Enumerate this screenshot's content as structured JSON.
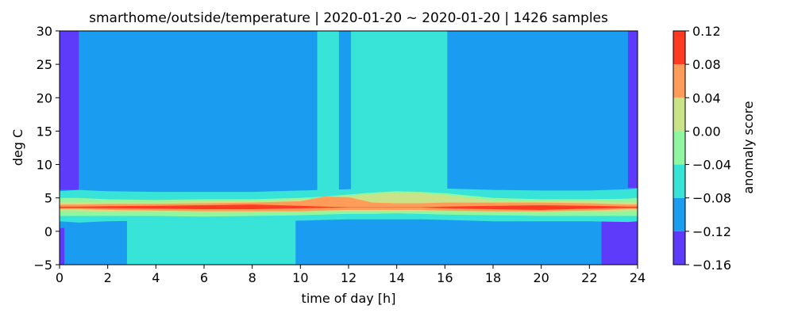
{
  "chart_data": {
    "type": "heatmap",
    "title": "smarthome/outside/temperature | 2020-01-20 ~ 2020-01-20 | 1426 samples",
    "xlabel": "time of day [h]",
    "ylabel": "deg C",
    "xlim": [
      0,
      24
    ],
    "ylim": [
      -5,
      30
    ],
    "xticks": [
      "0",
      "2",
      "4",
      "6",
      "8",
      "10",
      "12",
      "14",
      "16",
      "18",
      "20",
      "22",
      "24"
    ],
    "yticks": [
      "−5",
      "0",
      "5",
      "10",
      "15",
      "20",
      "25",
      "30"
    ],
    "colorbar": {
      "label": "anomaly score",
      "ticks": [
        "−0.16",
        "−0.12",
        "−0.08",
        "−0.04",
        "0.00",
        "0.04",
        "0.08",
        "0.12"
      ],
      "levels": [
        -0.16,
        -0.12,
        -0.08,
        -0.04,
        0.0,
        0.04,
        0.08,
        0.12
      ],
      "colors": [
        "#5e3bfb",
        "#1a9cf0",
        "#38e3d8",
        "#8ff7a0",
        "#c9e388",
        "#ff9c5a",
        "#ff3a20"
      ]
    },
    "regions": [
      {
        "x0": 0,
        "x1": 24,
        "y0": -5,
        "y1": 30,
        "level": -0.12
      },
      {
        "x0": 0,
        "x1": 0.8,
        "y0": 6.2,
        "y1": 30,
        "level": -0.16
      },
      {
        "x0": 23.6,
        "x1": 24,
        "y0": 6.5,
        "y1": 30,
        "level": -0.16
      },
      {
        "x0": 0,
        "x1": 0.2,
        "y0": -5,
        "y1": 0.5,
        "level": -0.16
      },
      {
        "x0": 22.5,
        "x1": 24,
        "y0": -5,
        "y1": 1.5,
        "level": -0.16
      },
      {
        "x0": 10.7,
        "x1": 11.6,
        "y0": 5,
        "y1": 30,
        "level": -0.08
      },
      {
        "x0": 12.1,
        "x1": 16.1,
        "y0": 5,
        "y1": 30,
        "level": -0.08
      },
      {
        "x0": 2.8,
        "x1": 9.8,
        "y0": -5,
        "y1": 2,
        "level": -0.08
      }
    ],
    "band": {
      "x": [
        0,
        0.8,
        2,
        4,
        6,
        8,
        10,
        11,
        12,
        13,
        14,
        15,
        16,
        18,
        20,
        22,
        23.6,
        24
      ],
      "layers": [
        {
          "level": -0.08,
          "upper": [
            6.0,
            6.2,
            6.0,
            5.9,
            5.9,
            5.9,
            6.1,
            6.2,
            6.3,
            6.5,
            6.6,
            6.5,
            6.4,
            6.2,
            6.1,
            6.1,
            6.3,
            6.4
          ],
          "lower": [
            1.5,
            1.3,
            1.5,
            1.6,
            1.5,
            1.5,
            1.6,
            1.7,
            1.8,
            1.8,
            1.8,
            1.8,
            1.7,
            1.5,
            1.5,
            1.5,
            1.4,
            1.5
          ]
        },
        {
          "level": -0.04,
          "upper": [
            5.0,
            5.0,
            4.8,
            4.7,
            4.8,
            4.8,
            5.0,
            5.2,
            5.5,
            5.8,
            6.0,
            5.9,
            5.7,
            5.0,
            4.8,
            4.8,
            4.9,
            5.0
          ],
          "lower": [
            2.3,
            2.3,
            2.3,
            2.3,
            2.2,
            2.3,
            2.4,
            2.5,
            2.6,
            2.6,
            2.7,
            2.6,
            2.5,
            2.4,
            2.3,
            2.3,
            2.3,
            2.3
          ]
        },
        {
          "level": 0.0,
          "upper": [
            4.4,
            4.4,
            4.4,
            4.4,
            4.5,
            4.5,
            4.7,
            5.0,
            5.3,
            5.6,
            5.8,
            5.7,
            5.4,
            4.6,
            4.5,
            4.5,
            4.4,
            4.4
          ],
          "lower": [
            3.0,
            3.0,
            2.9,
            2.9,
            2.8,
            2.8,
            2.9,
            3.0,
            3.0,
            3.0,
            3.0,
            3.0,
            3.0,
            2.9,
            2.8,
            2.9,
            3.0,
            3.0
          ]
        },
        {
          "level": 0.04,
          "upper": [
            4.0,
            4.0,
            4.1,
            4.1,
            4.2,
            4.3,
            4.5,
            5.2,
            5.1,
            4.3,
            4.2,
            4.2,
            4.3,
            4.3,
            4.3,
            4.2,
            4.0,
            4.0
          ],
          "lower": [
            3.3,
            3.3,
            3.2,
            3.1,
            3.0,
            3.0,
            3.0,
            3.1,
            3.2,
            3.2,
            3.2,
            3.2,
            3.1,
            3.0,
            3.0,
            3.1,
            3.3,
            3.3
          ]
        },
        {
          "level": 0.08,
          "upper": [
            3.7,
            3.7,
            3.75,
            3.8,
            3.9,
            4.0,
            3.8,
            3.7,
            3.6,
            3.6,
            3.6,
            3.6,
            3.7,
            3.8,
            3.9,
            3.8,
            3.7,
            3.7
          ],
          "lower": [
            3.5,
            3.5,
            3.45,
            3.4,
            3.3,
            3.3,
            3.45,
            3.5,
            3.55,
            3.55,
            3.55,
            3.55,
            3.45,
            3.3,
            3.2,
            3.4,
            3.5,
            3.5
          ]
        }
      ]
    }
  }
}
